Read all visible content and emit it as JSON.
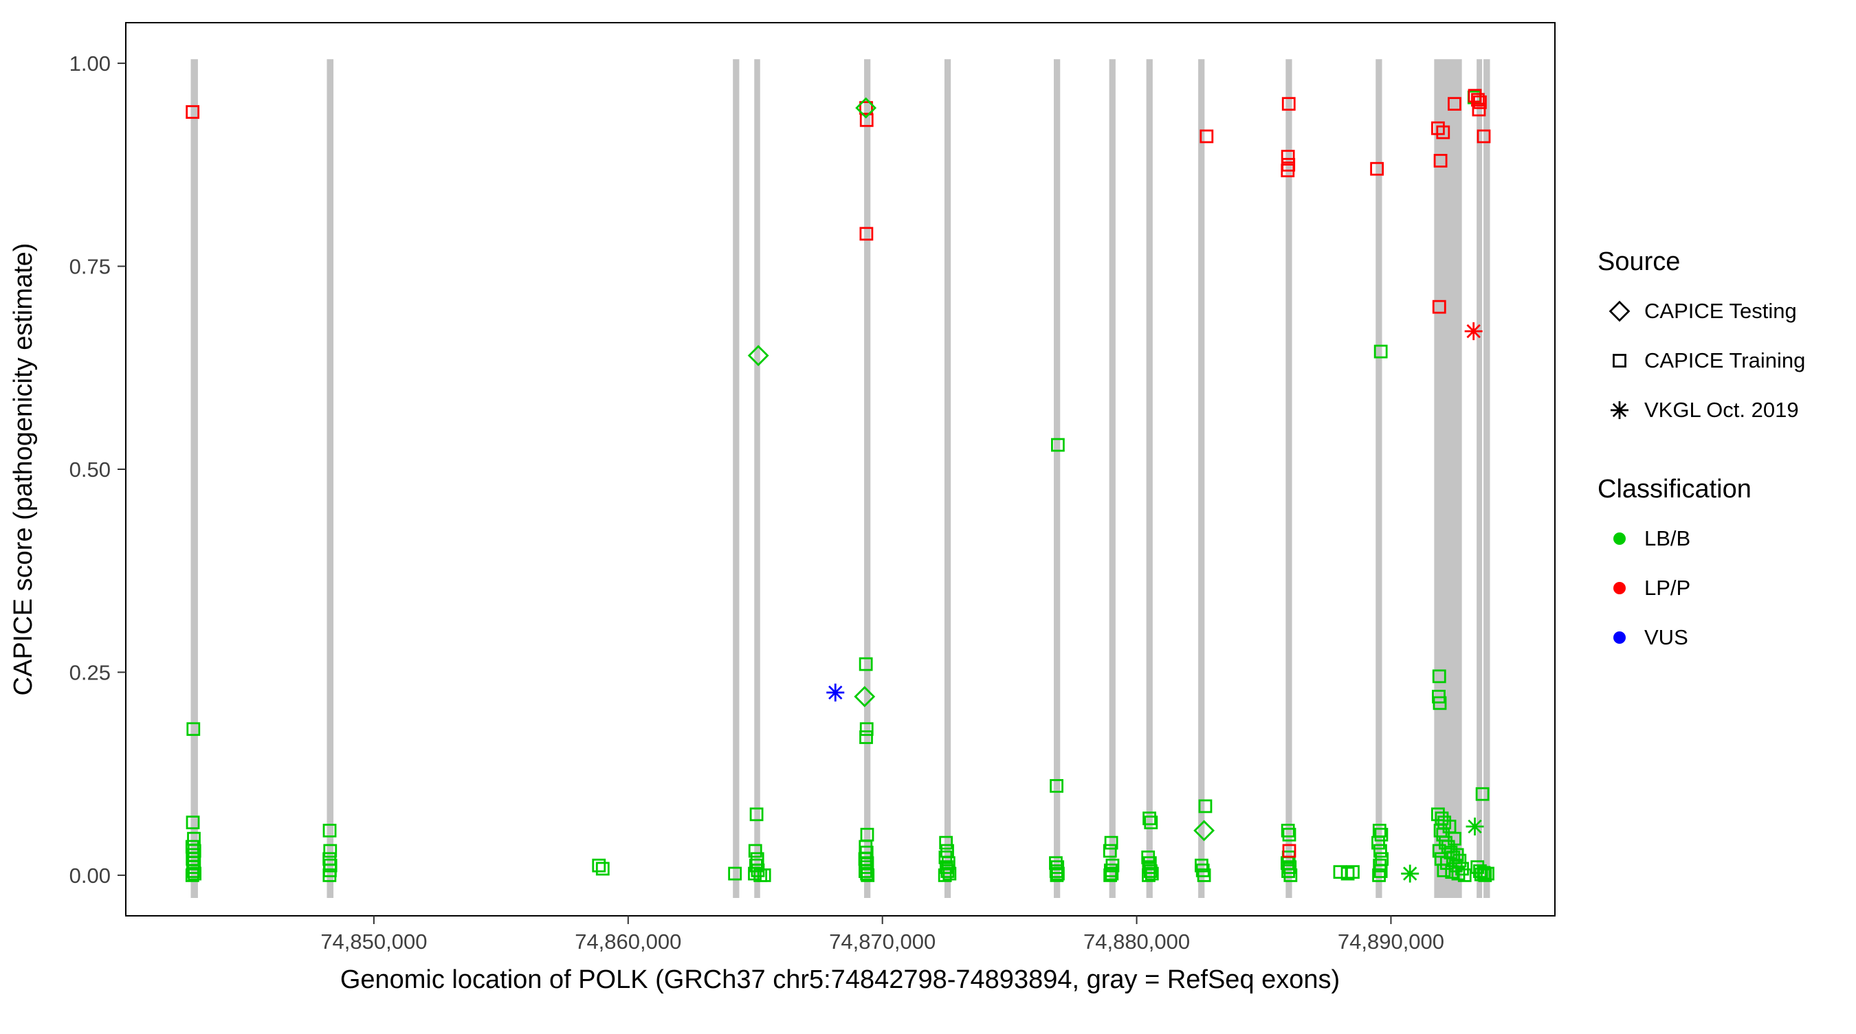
{
  "chart_data": {
    "type": "scatter",
    "title": "",
    "xlabel": "Genomic location of POLK (GRCh37 chr5:74842798-74893894, gray = RefSeq exons)",
    "ylabel": "CAPICE score (pathogenicity estimate)",
    "xlim": [
      74840243,
      74896449
    ],
    "ylim": [
      -0.05,
      1.05
    ],
    "x_ticks": [
      {
        "value": 74850000,
        "label": "74,850,000"
      },
      {
        "value": 74860000,
        "label": "74,860,000"
      },
      {
        "value": 74870000,
        "label": "74,870,000"
      },
      {
        "value": 74880000,
        "label": "74,880,000"
      },
      {
        "value": 74890000,
        "label": "74,890,000"
      }
    ],
    "y_ticks": [
      {
        "value": 0.0,
        "label": "0.00"
      },
      {
        "value": 0.25,
        "label": "0.25"
      },
      {
        "value": 0.5,
        "label": "0.50"
      },
      {
        "value": 0.75,
        "label": "0.75"
      },
      {
        "value": 1.0,
        "label": "1.00"
      }
    ],
    "exon_color": "#c4c4c4",
    "exons": [
      [
        74842798,
        74843080
      ],
      [
        74848150,
        74848410
      ],
      [
        74864120,
        74864370
      ],
      [
        74864960,
        74865190
      ],
      [
        74869280,
        74869530
      ],
      [
        74872440,
        74872690
      ],
      [
        74876740,
        74876990
      ],
      [
        74878920,
        74879170
      ],
      [
        74880380,
        74880630
      ],
      [
        74882420,
        74882670
      ],
      [
        74885860,
        74886110
      ],
      [
        74889400,
        74889650
      ],
      [
        74891700,
        74892790
      ],
      [
        74893370,
        74893560
      ],
      [
        74893640,
        74893894
      ]
    ],
    "series": [
      {
        "name": "CAPICE Training - LB/B",
        "source": "CAPICE Training",
        "classification": "LB/B",
        "marker": "square",
        "color": "#00cc00",
        "points": [
          [
            74842900,
            0.18
          ],
          [
            74842880,
            0.065
          ],
          [
            74842920,
            0.045
          ],
          [
            74842860,
            0.035
          ],
          [
            74842940,
            0.03
          ],
          [
            74842900,
            0.025
          ],
          [
            74842870,
            0.02
          ],
          [
            74842930,
            0.015
          ],
          [
            74842890,
            0.01
          ],
          [
            74842910,
            0.005
          ],
          [
            74842950,
            0.002
          ],
          [
            74842860,
            0.0
          ],
          [
            74848260,
            0.055
          ],
          [
            74848280,
            0.03
          ],
          [
            74848250,
            0.02
          ],
          [
            74848290,
            0.012
          ],
          [
            74848270,
            0.006
          ],
          [
            74848255,
            0.0
          ],
          [
            74858850,
            0.012
          ],
          [
            74859000,
            0.008
          ],
          [
            74864200,
            0.002
          ],
          [
            74865050,
            0.075
          ],
          [
            74865000,
            0.03
          ],
          [
            74865080,
            0.02
          ],
          [
            74865030,
            0.012
          ],
          [
            74865100,
            0.006
          ],
          [
            74864980,
            0.002
          ],
          [
            74865200,
            0.0
          ],
          [
            74865350,
            0.0
          ],
          [
            74869350,
            0.26
          ],
          [
            74869380,
            0.18
          ],
          [
            74869360,
            0.17
          ],
          [
            74869400,
            0.05
          ],
          [
            74869340,
            0.035
          ],
          [
            74869380,
            0.028
          ],
          [
            74869320,
            0.02
          ],
          [
            74869400,
            0.015
          ],
          [
            74869360,
            0.01
          ],
          [
            74869330,
            0.005
          ],
          [
            74869390,
            0.002
          ],
          [
            74869420,
            0.0
          ],
          [
            74872500,
            0.04
          ],
          [
            74872550,
            0.03
          ],
          [
            74872480,
            0.022
          ],
          [
            74872600,
            0.015
          ],
          [
            74872520,
            0.01
          ],
          [
            74872560,
            0.005
          ],
          [
            74872640,
            0.002
          ],
          [
            74872460,
            0.0
          ],
          [
            74876900,
            0.53
          ],
          [
            74876850,
            0.11
          ],
          [
            74876820,
            0.015
          ],
          [
            74876880,
            0.01
          ],
          [
            74876840,
            0.005
          ],
          [
            74876900,
            0.002
          ],
          [
            74876860,
            0.0
          ],
          [
            74879000,
            0.04
          ],
          [
            74878950,
            0.03
          ],
          [
            74879050,
            0.012
          ],
          [
            74878980,
            0.006
          ],
          [
            74879020,
            0.002
          ],
          [
            74878960,
            0.0
          ],
          [
            74880500,
            0.07
          ],
          [
            74880560,
            0.065
          ],
          [
            74880450,
            0.022
          ],
          [
            74880520,
            0.015
          ],
          [
            74880480,
            0.01
          ],
          [
            74880550,
            0.005
          ],
          [
            74880600,
            0.002
          ],
          [
            74880470,
            0.0
          ],
          [
            74882700,
            0.085
          ],
          [
            74882550,
            0.012
          ],
          [
            74882600,
            0.006
          ],
          [
            74882650,
            0.0
          ],
          [
            74885950,
            0.055
          ],
          [
            74886000,
            0.05
          ],
          [
            74885980,
            0.022
          ],
          [
            74885930,
            0.015
          ],
          [
            74886020,
            0.01
          ],
          [
            74885960,
            0.005
          ],
          [
            74886050,
            0.0
          ],
          [
            74888000,
            0.004
          ],
          [
            74888300,
            0.002
          ],
          [
            74888500,
            0.004
          ],
          [
            74889600,
            0.645
          ],
          [
            74889550,
            0.055
          ],
          [
            74889620,
            0.05
          ],
          [
            74889500,
            0.04
          ],
          [
            74889580,
            0.03
          ],
          [
            74889640,
            0.02
          ],
          [
            74889560,
            0.012
          ],
          [
            74889600,
            0.005
          ],
          [
            74889530,
            0.0
          ],
          [
            74891900,
            0.245
          ],
          [
            74891880,
            0.22
          ],
          [
            74891920,
            0.212
          ],
          [
            74893600,
            0.1
          ],
          [
            74891850,
            0.075
          ],
          [
            74892000,
            0.07
          ],
          [
            74892100,
            0.065
          ],
          [
            74892300,
            0.06
          ],
          [
            74891950,
            0.055
          ],
          [
            74892050,
            0.05
          ],
          [
            74892500,
            0.045
          ],
          [
            74892150,
            0.04
          ],
          [
            74892250,
            0.035
          ],
          [
            74891900,
            0.03
          ],
          [
            74892350,
            0.028
          ],
          [
            74892600,
            0.025
          ],
          [
            74892450,
            0.022
          ],
          [
            74891980,
            0.02
          ],
          [
            74892700,
            0.018
          ],
          [
            74892200,
            0.015
          ],
          [
            74892550,
            0.012
          ],
          [
            74893400,
            0.01
          ],
          [
            74892800,
            0.008
          ],
          [
            74892080,
            0.006
          ],
          [
            74893500,
            0.005
          ],
          [
            74892400,
            0.004
          ],
          [
            74893650,
            0.003
          ],
          [
            74892650,
            0.002
          ],
          [
            74893550,
            0.001
          ],
          [
            74892900,
            0.0
          ],
          [
            74893700,
            0.0
          ],
          [
            74893800,
            0.002
          ],
          [
            74893280,
            0.958
          ]
        ]
      },
      {
        "name": "CAPICE Training - LP/P",
        "source": "CAPICE Training",
        "classification": "LP/P",
        "marker": "square",
        "color": "#ff0000",
        "points": [
          [
            74842870,
            0.94
          ],
          [
            74869360,
            0.945
          ],
          [
            74869380,
            0.93
          ],
          [
            74869370,
            0.79
          ],
          [
            74882750,
            0.91
          ],
          [
            74885980,
            0.95
          ],
          [
            74885950,
            0.885
          ],
          [
            74885965,
            0.875
          ],
          [
            74885940,
            0.868
          ],
          [
            74886000,
            0.03
          ],
          [
            74889450,
            0.87
          ],
          [
            74891850,
            0.92
          ],
          [
            74892050,
            0.915
          ],
          [
            74891950,
            0.88
          ],
          [
            74891900,
            0.7
          ],
          [
            74892500,
            0.95
          ],
          [
            74893300,
            0.96
          ],
          [
            74893420,
            0.955
          ],
          [
            74893500,
            0.952
          ],
          [
            74893460,
            0.943
          ],
          [
            74893650,
            0.91
          ]
        ]
      },
      {
        "name": "CAPICE Testing - LB/B",
        "source": "CAPICE Testing",
        "classification": "LB/B",
        "marker": "diamond",
        "color": "#00cc00",
        "points": [
          [
            74865120,
            0.64
          ],
          [
            74869350,
            0.945
          ],
          [
            74869300,
            0.22
          ],
          [
            74882650,
            0.055
          ]
        ]
      },
      {
        "name": "VKGL Oct. 2019 - VUS",
        "source": "VKGL Oct. 2019",
        "classification": "VUS",
        "marker": "asterisk",
        "color": "#0000ff",
        "points": [
          [
            74868150,
            0.225
          ]
        ]
      },
      {
        "name": "VKGL Oct. 2019 - LP/P",
        "source": "VKGL Oct. 2019",
        "classification": "LP/P",
        "marker": "asterisk",
        "color": "#ff0000",
        "points": [
          [
            74893250,
            0.67
          ]
        ]
      },
      {
        "name": "VKGL Oct. 2019 - LB/B",
        "source": "VKGL Oct. 2019",
        "classification": "LB/B",
        "marker": "asterisk",
        "color": "#00cc00",
        "points": [
          [
            74890750,
            0.002
          ],
          [
            74893300,
            0.06
          ]
        ]
      }
    ]
  },
  "legend": {
    "source_title": "Source",
    "source_items": [
      {
        "label": "CAPICE Testing",
        "marker": "diamond"
      },
      {
        "label": "CAPICE Training",
        "marker": "square"
      },
      {
        "label": "VKGL Oct. 2019",
        "marker": "asterisk"
      }
    ],
    "classification_title": "Classification",
    "classification_items": [
      {
        "label": "LB/B",
        "color": "#00cc00"
      },
      {
        "label": "LP/P",
        "color": "#ff0000"
      },
      {
        "label": "VUS",
        "color": "#0000ff"
      }
    ]
  }
}
